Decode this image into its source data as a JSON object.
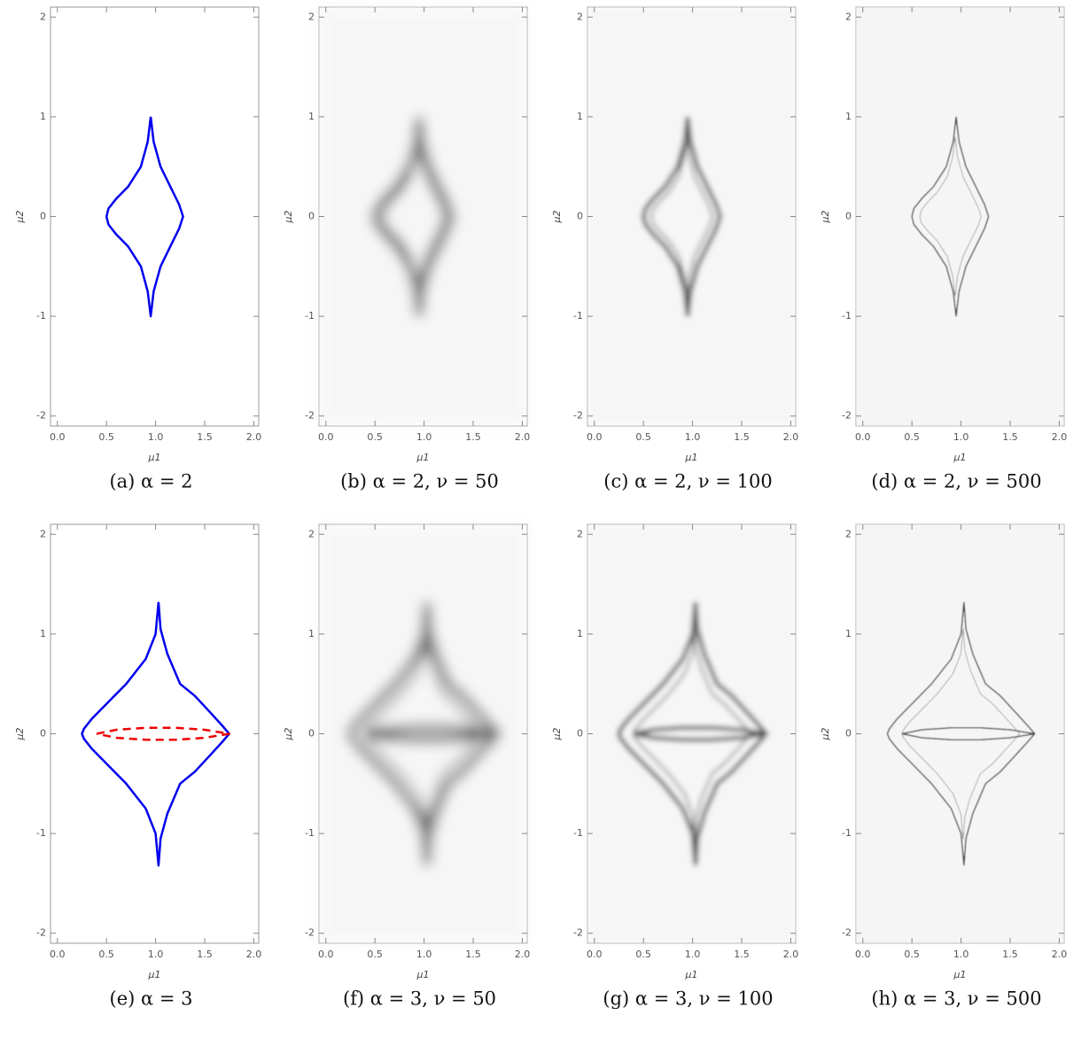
{
  "chart_data": [
    {
      "type": "line",
      "caption": "(a) α = 2",
      "xlabel": "μ1",
      "ylabel": "μ2",
      "xlim": [
        -0.07,
        2.05
      ],
      "ylim": [
        -2.1,
        2.1
      ],
      "xticks": [
        {
          "value": 0,
          "label": "0.0"
        },
        {
          "value": 0.5,
          "label": "0.5"
        },
        {
          "value": 1,
          "label": "1.0"
        },
        {
          "value": 1.5,
          "label": "1.5"
        },
        {
          "value": 2,
          "label": "2.0"
        }
      ],
      "yticks": [
        -2,
        -1,
        0,
        1,
        2
      ],
      "series": [
        {
          "color": "#0000ee",
          "dash": false,
          "x": [
            0.95,
            0.92,
            0.85,
            0.72,
            0.6,
            0.52,
            0.5,
            0.52,
            0.6,
            0.72,
            0.85,
            0.92,
            0.95,
            0.98,
            1.05,
            1.15,
            1.24,
            1.28,
            1.24,
            1.15,
            1.05,
            0.98,
            0.95
          ],
          "values": [
            1,
            0.75,
            0.5,
            0.3,
            0.18,
            0.08,
            0,
            -0.08,
            -0.18,
            -0.3,
            -0.5,
            -0.75,
            -1,
            -0.75,
            -0.5,
            -0.3,
            -0.12,
            0,
            0.12,
            0.3,
            0.5,
            0.75,
            1
          ]
        }
      ]
    },
    {
      "type": "density",
      "caption": "(b) α = 2, ν = 50",
      "xlabel": "μ1",
      "ylabel": "μ2",
      "xlim": [
        -0.07,
        2.05
      ],
      "ylim": [
        -2.1,
        2.1
      ],
      "xticks": [
        {
          "value": 0,
          "label": "0.0"
        },
        {
          "value": 0.5,
          "label": "0.5"
        },
        {
          "value": 1,
          "label": "1.0"
        },
        {
          "value": 1.5,
          "label": "1.5"
        },
        {
          "value": 2,
          "label": "2.0"
        }
      ],
      "yticks": [
        -2,
        -1,
        0,
        1,
        2
      ]
    },
    {
      "type": "density",
      "caption": "(c) α = 2, ν = 100",
      "xlabel": "μ1",
      "ylabel": "μ2",
      "xlim": [
        -0.07,
        2.05
      ],
      "ylim": [
        -2.1,
        2.1
      ],
      "xticks": [
        {
          "value": 0,
          "label": "0.0"
        },
        {
          "value": 0.5,
          "label": "0.5"
        },
        {
          "value": 1,
          "label": "1.0"
        },
        {
          "value": 1.5,
          "label": "1.5"
        },
        {
          "value": 2,
          "label": "2.0"
        }
      ],
      "yticks": [
        -2,
        -1,
        0,
        1,
        2
      ]
    },
    {
      "type": "density",
      "caption": "(d) α = 2, ν = 500",
      "xlabel": "μ1",
      "ylabel": "μ2",
      "xlim": [
        -0.07,
        2.05
      ],
      "ylim": [
        -2.1,
        2.1
      ],
      "xticks": [
        {
          "value": 0,
          "label": "0.0"
        },
        {
          "value": 0.5,
          "label": "0.5"
        },
        {
          "value": 1,
          "label": "1.0"
        },
        {
          "value": 1.5,
          "label": "1.5"
        },
        {
          "value": 2,
          "label": "2.0"
        }
      ],
      "yticks": [
        -2,
        -1,
        0,
        1,
        2
      ]
    },
    {
      "type": "line",
      "caption": "(e) α = 3",
      "xlabel": "μ1",
      "ylabel": "μ2",
      "xlim": [
        -0.07,
        2.05
      ],
      "ylim": [
        -2.1,
        2.1
      ],
      "xticks": [
        {
          "value": 0,
          "label": "0.0"
        },
        {
          "value": 0.5,
          "label": "0.5"
        },
        {
          "value": 1,
          "label": "1.0"
        },
        {
          "value": 1.5,
          "label": "1.5"
        },
        {
          "value": 2,
          "label": "2.0"
        }
      ],
      "yticks": [
        -2,
        -1,
        0,
        1,
        2
      ],
      "series": [
        {
          "color": "#0000ee",
          "dash": false,
          "x": [
            1.03,
            1.0,
            0.9,
            0.7,
            0.5,
            0.35,
            0.27,
            0.25,
            0.27,
            0.35,
            0.5,
            0.7,
            0.9,
            1.0,
            1.03,
            1.05,
            1.12,
            1.25,
            1.4,
            1.55,
            1.68,
            1.75,
            1.68,
            1.55,
            1.4,
            1.25,
            1.12,
            1.05,
            1.03
          ],
          "values": [
            1.32,
            1.0,
            0.75,
            0.5,
            0.3,
            0.15,
            0.05,
            0,
            -0.05,
            -0.15,
            -0.3,
            -0.5,
            -0.75,
            -1.0,
            -1.32,
            -1.05,
            -0.8,
            -0.5,
            -0.38,
            -0.22,
            -0.08,
            0,
            0.08,
            0.22,
            0.38,
            0.5,
            0.8,
            1.05,
            1.32
          ]
        },
        {
          "color": "#ee0000",
          "dash": true,
          "x": [
            0.4,
            0.6,
            0.9,
            1.2,
            1.5,
            1.75,
            1.5,
            1.2,
            0.9,
            0.6,
            0.4
          ],
          "values": [
            0,
            0.04,
            0.06,
            0.06,
            0.04,
            0,
            -0.04,
            -0.06,
            -0.06,
            -0.04,
            0
          ]
        }
      ]
    },
    {
      "type": "density",
      "caption": "(f) α = 3, ν = 50",
      "xlabel": "μ1",
      "ylabel": "μ2",
      "xlim": [
        -0.07,
        2.05
      ],
      "ylim": [
        -2.1,
        2.1
      ],
      "xticks": [
        {
          "value": 0,
          "label": "0.0"
        },
        {
          "value": 0.5,
          "label": "0.5"
        },
        {
          "value": 1,
          "label": "1.0"
        },
        {
          "value": 1.5,
          "label": "1.5"
        },
        {
          "value": 2,
          "label": "2.0"
        }
      ],
      "yticks": [
        -2,
        -1,
        0,
        1,
        2
      ]
    },
    {
      "type": "density",
      "caption": "(g) α = 3, ν = 100",
      "xlabel": "μ1",
      "ylabel": "μ2",
      "xlim": [
        -0.07,
        2.05
      ],
      "ylim": [
        -2.1,
        2.1
      ],
      "xticks": [
        {
          "value": 0,
          "label": "0.0"
        },
        {
          "value": 0.5,
          "label": "0.5"
        },
        {
          "value": 1,
          "label": "1.0"
        },
        {
          "value": 1.5,
          "label": "1.5"
        },
        {
          "value": 2,
          "label": "2.0"
        }
      ],
      "yticks": [
        -2,
        -1,
        0,
        1,
        2
      ]
    },
    {
      "type": "density",
      "caption": "(h) α = 3, ν = 500",
      "xlabel": "μ1",
      "ylabel": "μ2",
      "xlim": [
        -0.07,
        2.05
      ],
      "ylim": [
        -2.1,
        2.1
      ],
      "xticks": [
        {
          "value": 0,
          "label": "0.0"
        },
        {
          "value": 0.5,
          "label": "0.5"
        },
        {
          "value": 1,
          "label": "1.0"
        },
        {
          "value": 1.5,
          "label": "1.5"
        },
        {
          "value": 2,
          "label": "2.0"
        }
      ],
      "yticks": [
        -2,
        -1,
        0,
        1,
        2
      ]
    }
  ]
}
